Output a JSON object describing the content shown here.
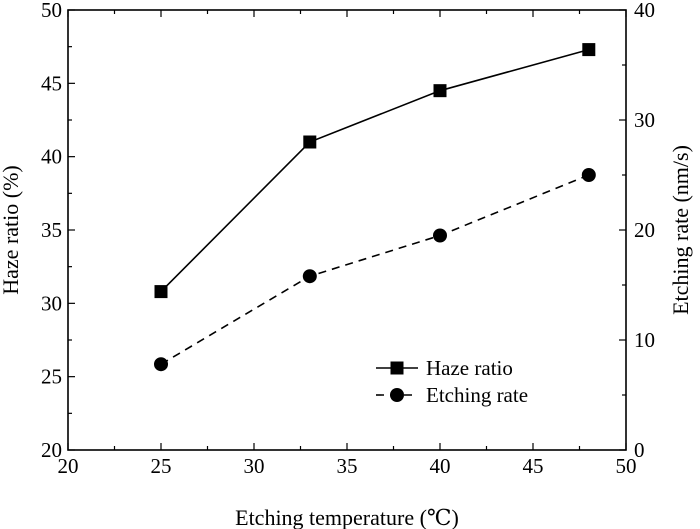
{
  "chart_data": {
    "type": "line",
    "title": "",
    "xlabel": "Etching temperature (℃)",
    "ylabel_left": "Haze ratio (%)",
    "ylabel_right": "Etching rate (nm/s)",
    "xlim": [
      20,
      50
    ],
    "ylim_left": [
      20,
      50
    ],
    "ylim_right": [
      0,
      40
    ],
    "xticks": [
      20,
      25,
      30,
      35,
      40,
      45,
      50
    ],
    "yticks_left": [
      20,
      25,
      30,
      35,
      40,
      45,
      50
    ],
    "yticks_right": [
      0,
      10,
      20,
      30,
      40
    ],
    "x": [
      25,
      33,
      40,
      48
    ],
    "grid": false,
    "legend_position": "bottom-right",
    "series": [
      {
        "name": "Haze ratio",
        "axis": "left",
        "marker": "square",
        "line_style": "solid",
        "color": "#000000",
        "values": [
          30.8,
          41.0,
          44.5,
          47.3
        ]
      },
      {
        "name": "Etching rate",
        "axis": "right",
        "marker": "circle",
        "line_style": "dashed",
        "color": "#000000",
        "values": [
          7.8,
          15.8,
          19.5,
          25.0
        ]
      }
    ]
  }
}
